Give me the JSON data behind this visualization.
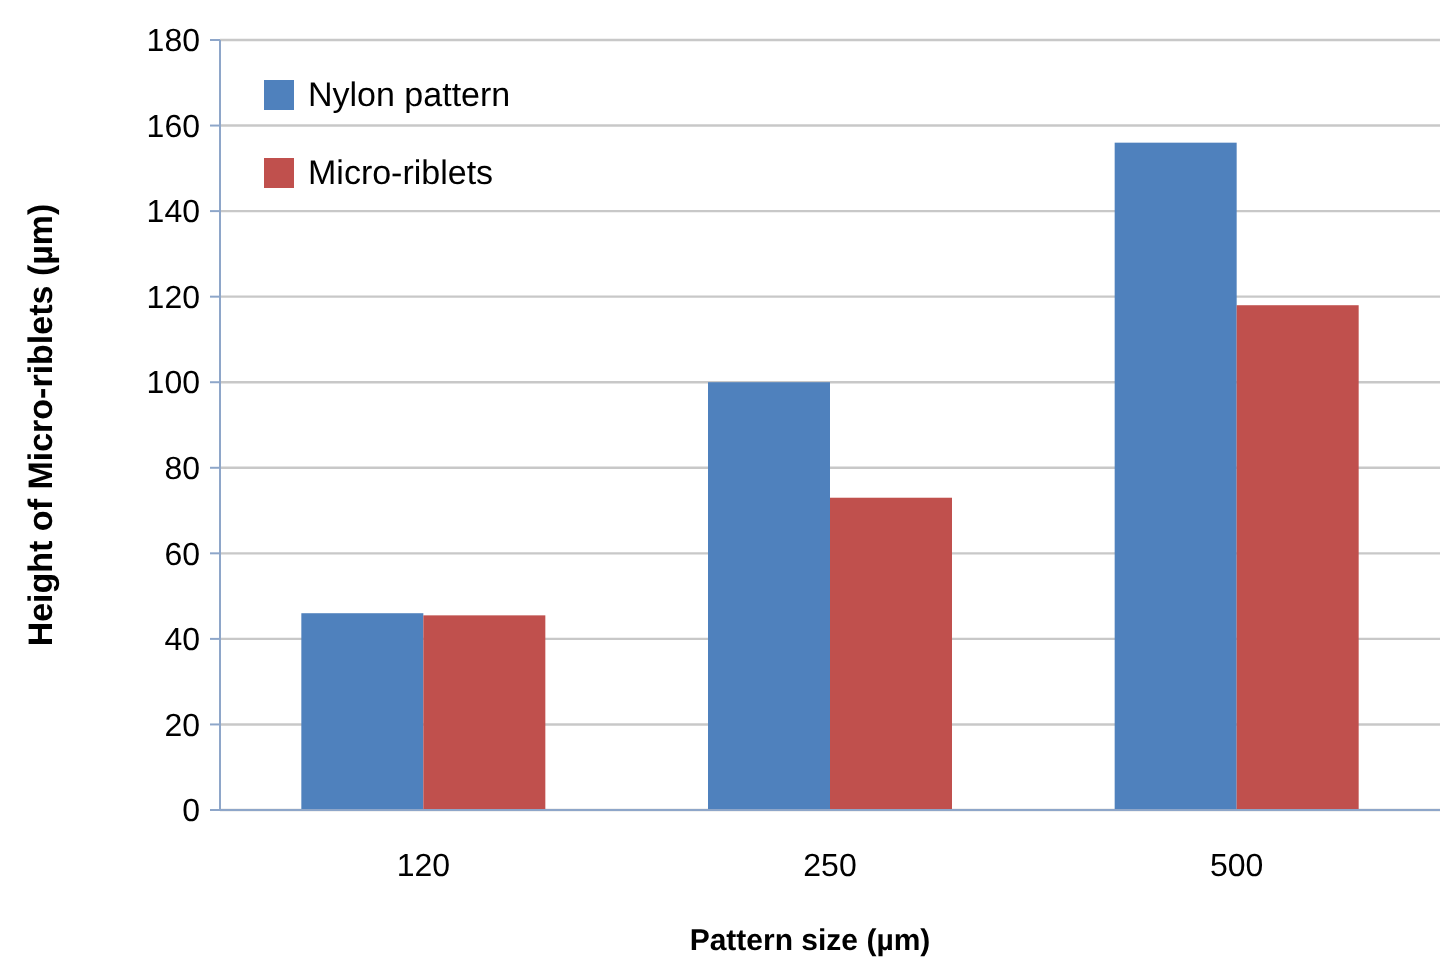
{
  "chart_data": {
    "type": "bar",
    "xlabel": "Pattern size (µm)",
    "ylabel": "Height of Micro-riblets  (µm)",
    "categories": [
      "120",
      "250",
      "500"
    ],
    "series": [
      {
        "name": "Nylon pattern",
        "color": "#4f81bd",
        "values": [
          46,
          100,
          156
        ]
      },
      {
        "name": "Micro-riblets",
        "color": "#c0504d",
        "values": [
          45.5,
          73,
          118
        ]
      }
    ],
    "ylim": [
      0,
      180
    ],
    "yticks": [
      0,
      20,
      40,
      60,
      80,
      100,
      120,
      140,
      160,
      180
    ],
    "grid": "y",
    "legend": "top left"
  }
}
